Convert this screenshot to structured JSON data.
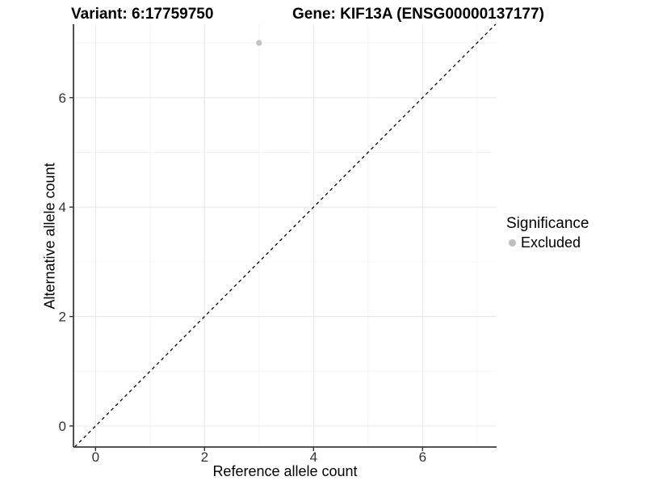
{
  "titles": {
    "variant": "Variant: 6:17759750",
    "gene": "Gene: KIF13A (ENSG00000137177)"
  },
  "chart_data": {
    "type": "scatter",
    "title": "Variant: 6:17759750   Gene: KIF13A (ENSG00000137177)",
    "xlabel": "Reference allele count",
    "ylabel": "Alternative allele count",
    "x_ticks": [
      0,
      2,
      4,
      6
    ],
    "y_ticks": [
      0,
      2,
      4,
      6
    ],
    "x_minor_gridlines": [
      1,
      3,
      5,
      7
    ],
    "y_minor_gridlines": [
      1,
      3,
      5,
      7
    ],
    "xlim": [
      -0.4,
      7.36
    ],
    "ylim": [
      -0.39,
      7.34
    ],
    "grid": true,
    "points": [
      {
        "x": 3,
        "y": 7,
        "series": "Excluded",
        "color": "#c2c2c2"
      }
    ],
    "reference_line": {
      "equation": "y = x",
      "style": "dashed",
      "color": "#000000"
    },
    "legend": {
      "title": "Significance",
      "position": "right",
      "items": [
        {
          "label": "Excluded",
          "color": "#bebebe",
          "marker": "circle"
        }
      ]
    }
  },
  "colors": {
    "background": "#ffffff",
    "major_grid": "#e8e8e8",
    "minor_grid": "#f3f3f3",
    "axis_line": "#3c3c3c",
    "tick_mark": "#333333",
    "tick_label": "#333333",
    "excluded_point": "#c2c2c2"
  }
}
